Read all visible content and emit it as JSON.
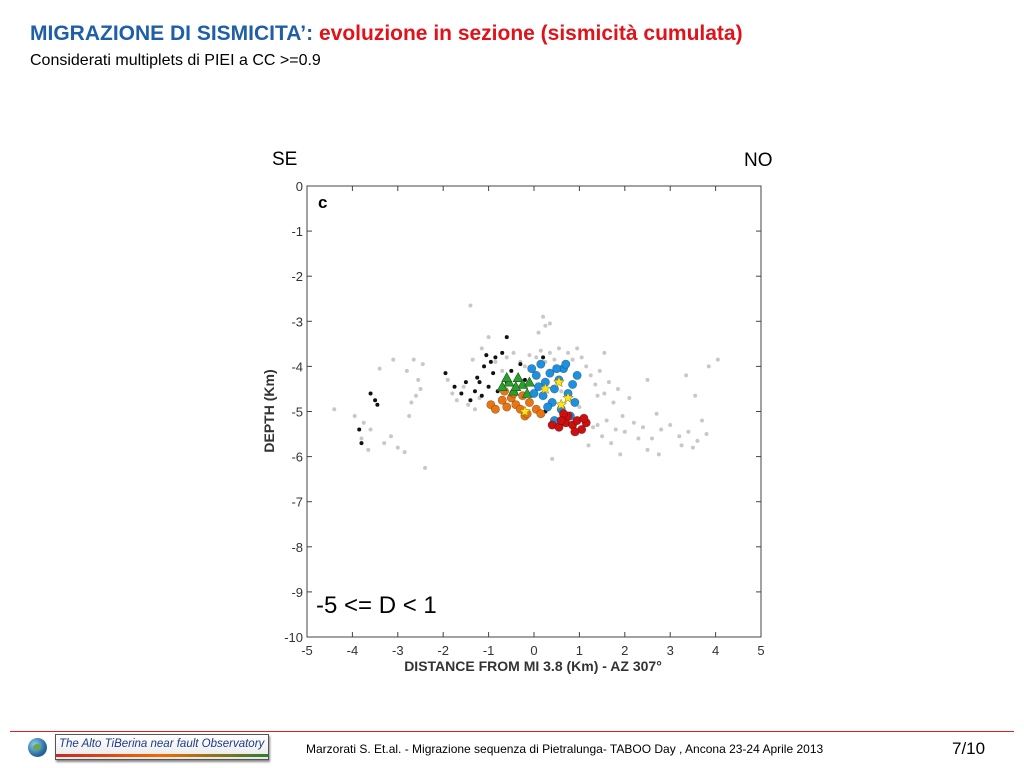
{
  "slide": {
    "title_main": "MIGRAZIONE DI SISMICITA’:",
    "title_sub": "evoluzione in sezione (sismicità cumulata)",
    "subtitle": "Considerati multiplets di PIEI a CC >=0.9",
    "direction_left": "SE",
    "direction_right": "NO",
    "footer_citation": "Marzorati S.  Et.al. - Migrazione sequenza di Pietralunga- TABOO Day , Ancona 23-24 Aprile 2013",
    "page_number": "7/10",
    "logo_text": "The Alto TiBerina near fault Observatory",
    "colors": {
      "title_main": "#1f5fa8",
      "title_sub": "#e0121a",
      "footer_line": "#e02020"
    }
  },
  "chart_data": {
    "type": "scatter",
    "panel_label": "c",
    "annotation": "-5 <= D < 1",
    "xlabel": "DISTANCE FROM MI 3.8 (Km) - AZ 307°",
    "ylabel": "DEPTH (Km)",
    "xlim": [
      -5,
      5
    ],
    "ylim": [
      -10,
      0
    ],
    "xticks": [
      -5,
      -4,
      -3,
      -2,
      -1,
      0,
      1,
      2,
      3,
      4,
      5
    ],
    "yticks": [
      0,
      -1,
      -2,
      -3,
      -4,
      -5,
      -6,
      -7,
      -8,
      -9,
      -10
    ],
    "grid": false,
    "series": [
      {
        "color": "#c8c8c8",
        "marker": "dot",
        "points": [
          [
            -2.65,
            -3.85
          ],
          [
            -2.45,
            -3.95
          ],
          [
            -2.8,
            -4.1
          ],
          [
            -2.55,
            -4.3
          ],
          [
            -2.5,
            -4.5
          ],
          [
            -2.6,
            -4.65
          ],
          [
            -2.7,
            -4.8
          ],
          [
            -3.4,
            -4.05
          ],
          [
            -3.1,
            -3.85
          ],
          [
            -3.6,
            -5.4
          ],
          [
            -3.8,
            -5.6
          ],
          [
            -3.65,
            -5.85
          ],
          [
            -3.75,
            -5.25
          ],
          [
            -3.95,
            -5.1
          ],
          [
            -4.4,
            -4.95
          ],
          [
            -3.0,
            -5.8
          ],
          [
            -3.15,
            -5.55
          ],
          [
            -2.85,
            -5.9
          ],
          [
            -2.4,
            -6.25
          ],
          [
            -2.75,
            -5.1
          ],
          [
            -3.3,
            -5.7
          ],
          [
            -1.9,
            -4.3
          ],
          [
            -1.8,
            -4.6
          ],
          [
            -1.7,
            -4.75
          ],
          [
            -1.55,
            -4.45
          ],
          [
            -1.45,
            -4.85
          ],
          [
            -1.3,
            -4.95
          ],
          [
            -1.2,
            -4.35
          ],
          [
            -1.15,
            -3.6
          ],
          [
            -1.35,
            -3.85
          ],
          [
            -1.0,
            -3.35
          ],
          [
            -1.4,
            -2.65
          ],
          [
            -1.2,
            -4.7
          ],
          [
            -0.85,
            -3.9
          ],
          [
            -0.7,
            -4.1
          ],
          [
            -0.6,
            -3.8
          ],
          [
            -0.45,
            -3.7
          ],
          [
            -0.3,
            -3.9
          ],
          [
            -0.2,
            -4.0
          ],
          [
            -0.1,
            -3.75
          ],
          [
            0.05,
            -3.8
          ],
          [
            0.15,
            -3.65
          ],
          [
            0.25,
            -3.9
          ],
          [
            0.35,
            -3.7
          ],
          [
            0.45,
            -3.85
          ],
          [
            0.55,
            -3.6
          ],
          [
            0.65,
            -3.95
          ],
          [
            0.75,
            -3.7
          ],
          [
            0.85,
            -3.85
          ],
          [
            0.95,
            -3.6
          ],
          [
            1.05,
            -3.8
          ],
          [
            1.15,
            -4.0
          ],
          [
            1.25,
            -4.2
          ],
          [
            1.35,
            -4.4
          ],
          [
            1.45,
            -4.1
          ],
          [
            1.55,
            -4.6
          ],
          [
            1.65,
            -4.35
          ],
          [
            1.75,
            -4.8
          ],
          [
            1.85,
            -4.5
          ],
          [
            0.25,
            -3.1
          ],
          [
            0.1,
            -3.25
          ],
          [
            0.2,
            -2.9
          ],
          [
            0.35,
            -3.05
          ],
          [
            0.5,
            -4.35
          ],
          [
            0.6,
            -4.55
          ],
          [
            0.8,
            -4.75
          ],
          [
            1.0,
            -4.9
          ],
          [
            1.1,
            -5.15
          ],
          [
            1.3,
            -5.35
          ],
          [
            1.5,
            -5.55
          ],
          [
            1.7,
            -5.7
          ],
          [
            1.9,
            -5.95
          ],
          [
            1.2,
            -5.75
          ],
          [
            1.4,
            -5.3
          ],
          [
            1.6,
            -5.2
          ],
          [
            1.8,
            -5.4
          ],
          [
            2.0,
            -5.45
          ],
          [
            2.2,
            -5.25
          ],
          [
            2.4,
            -5.35
          ],
          [
            2.6,
            -5.6
          ],
          [
            2.8,
            -5.4
          ],
          [
            3.0,
            -5.3
          ],
          [
            3.2,
            -5.55
          ],
          [
            3.4,
            -5.45
          ],
          [
            3.6,
            -5.65
          ],
          [
            3.8,
            -5.5
          ],
          [
            3.5,
            -5.8
          ],
          [
            3.25,
            -5.75
          ],
          [
            3.7,
            -5.2
          ],
          [
            2.5,
            -5.85
          ],
          [
            1.95,
            -5.1
          ],
          [
            2.3,
            -5.6
          ],
          [
            2.1,
            -4.7
          ],
          [
            2.5,
            -4.3
          ],
          [
            3.35,
            -4.2
          ],
          [
            3.55,
            -4.65
          ],
          [
            3.85,
            -4.0
          ],
          [
            4.05,
            -3.85
          ],
          [
            2.7,
            -5.05
          ],
          [
            1.55,
            -3.7
          ],
          [
            0.4,
            -6.05
          ],
          [
            1.4,
            -4.65
          ],
          [
            0.95,
            -5.5
          ],
          [
            2.75,
            -5.95
          ]
        ]
      },
      {
        "color": "#111111",
        "marker": "dot",
        "points": [
          [
            -1.95,
            -4.15
          ],
          [
            -1.75,
            -4.45
          ],
          [
            -1.6,
            -4.6
          ],
          [
            -1.5,
            -4.35
          ],
          [
            -1.4,
            -4.75
          ],
          [
            -1.3,
            -4.55
          ],
          [
            -1.25,
            -4.25
          ],
          [
            -1.15,
            -4.65
          ],
          [
            -1.0,
            -4.45
          ],
          [
            -0.9,
            -4.15
          ],
          [
            -0.8,
            -4.55
          ],
          [
            -1.1,
            -4.0
          ],
          [
            -0.95,
            -3.9
          ],
          [
            -0.7,
            -3.7
          ],
          [
            -0.6,
            -4.35
          ],
          [
            -0.5,
            -4.1
          ],
          [
            -0.4,
            -4.6
          ],
          [
            -0.3,
            -3.95
          ],
          [
            -0.2,
            -4.3
          ],
          [
            -0.1,
            -4.75
          ],
          [
            0.2,
            -3.8
          ],
          [
            0.25,
            -5.0
          ],
          [
            -3.6,
            -4.6
          ],
          [
            -3.5,
            -4.75
          ],
          [
            -3.45,
            -4.85
          ],
          [
            -3.85,
            -5.4
          ],
          [
            -3.8,
            -5.7
          ],
          [
            -0.6,
            -3.35
          ],
          [
            -1.05,
            -3.75
          ],
          [
            -0.85,
            -3.8
          ],
          [
            -1.2,
            -4.35
          ]
        ]
      },
      {
        "color": "#e87511",
        "marker": "circle",
        "points": [
          [
            -0.95,
            -4.85
          ],
          [
            -0.85,
            -4.95
          ],
          [
            -0.7,
            -4.75
          ],
          [
            -0.6,
            -4.9
          ],
          [
            -0.5,
            -4.7
          ],
          [
            -0.4,
            -4.85
          ],
          [
            -0.3,
            -4.95
          ],
          [
            -0.2,
            -5.1
          ],
          [
            -0.1,
            -4.8
          ],
          [
            0.05,
            -4.95
          ],
          [
            0.15,
            -5.05
          ],
          [
            -0.65,
            -4.55
          ],
          [
            -0.45,
            -4.6
          ],
          [
            -0.25,
            -4.65
          ],
          [
            -0.15,
            -5.05
          ]
        ]
      },
      {
        "color": "#2d9e2d",
        "marker": "triangle",
        "points": [
          [
            -0.7,
            -4.45
          ],
          [
            -0.55,
            -4.35
          ],
          [
            -0.45,
            -4.55
          ],
          [
            -0.35,
            -4.25
          ],
          [
            -0.25,
            -4.4
          ],
          [
            -0.15,
            -4.6
          ],
          [
            -0.6,
            -4.25
          ],
          [
            -0.4,
            -4.45
          ],
          [
            -0.1,
            -4.35
          ]
        ]
      },
      {
        "color": "#1e90e0",
        "marker": "circle",
        "points": [
          [
            -0.05,
            -4.05
          ],
          [
            0.05,
            -4.2
          ],
          [
            0.15,
            -3.95
          ],
          [
            0.25,
            -4.35
          ],
          [
            0.35,
            -4.15
          ],
          [
            0.45,
            -4.5
          ],
          [
            0.55,
            -4.3
          ],
          [
            0.65,
            -4.05
          ],
          [
            0.75,
            -4.6
          ],
          [
            0.85,
            -4.4
          ],
          [
            0.2,
            -4.65
          ],
          [
            0.4,
            -4.8
          ],
          [
            0.6,
            -4.95
          ],
          [
            0.8,
            -5.1
          ],
          [
            0.1,
            -4.45
          ],
          [
            0.5,
            -4.05
          ],
          [
            0.7,
            -3.95
          ],
          [
            0.3,
            -4.9
          ],
          [
            0.95,
            -4.2
          ],
          [
            0.9,
            -4.8
          ],
          [
            0.0,
            -4.6
          ],
          [
            0.45,
            -5.2
          ]
        ]
      },
      {
        "color": "#cc1010",
        "marker": "circle",
        "points": [
          [
            0.4,
            -5.3
          ],
          [
            0.55,
            -5.35
          ],
          [
            0.7,
            -5.25
          ],
          [
            0.85,
            -5.3
          ],
          [
            0.95,
            -5.2
          ],
          [
            1.05,
            -5.4
          ],
          [
            1.15,
            -5.25
          ],
          [
            0.75,
            -5.1
          ],
          [
            0.65,
            -5.05
          ],
          [
            0.9,
            -5.45
          ],
          [
            1.1,
            -5.15
          ],
          [
            0.6,
            -5.2
          ]
        ]
      },
      {
        "color": "#ffe21a",
        "marker": "star",
        "points": [
          [
            0.25,
            -4.5
          ],
          [
            0.55,
            -4.35
          ],
          [
            0.75,
            -4.7
          ],
          [
            -0.2,
            -5.0
          ],
          [
            0.6,
            -4.85
          ]
        ]
      }
    ]
  }
}
